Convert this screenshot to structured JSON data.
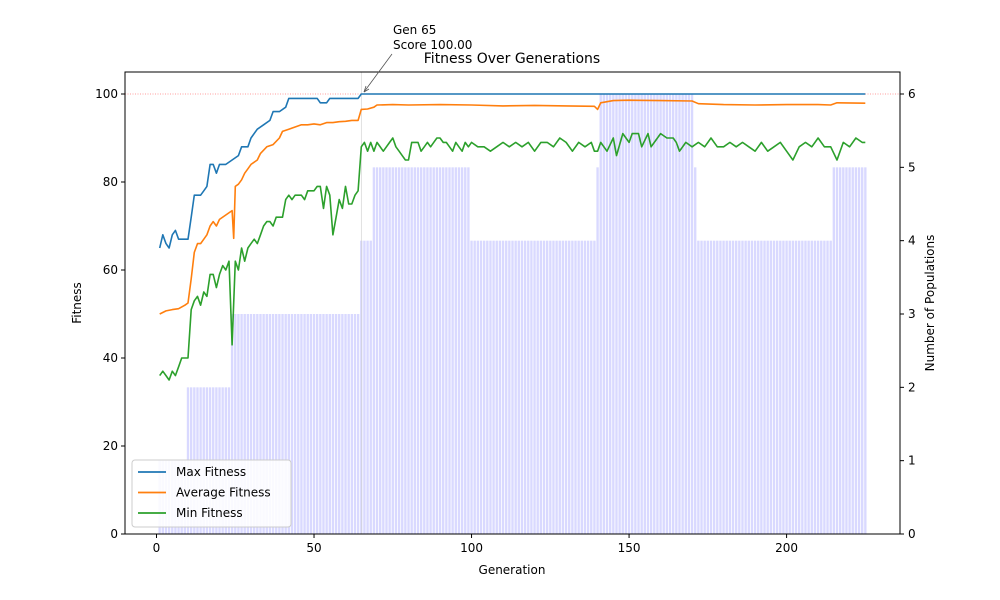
{
  "chart_data": {
    "type": "line",
    "title": "Fitness Over Generations",
    "xlabel": "Generation",
    "ylabel": "Fitness",
    "y2label": "Number of Populations",
    "xlim": [
      -10,
      236
    ],
    "ylim": [
      0,
      105
    ],
    "y2lim": [
      0,
      6.3
    ],
    "xticks": [
      0,
      50,
      100,
      150,
      200
    ],
    "yticks": [
      0,
      20,
      40,
      60,
      80,
      100
    ],
    "y2ticks": [
      0,
      1,
      2,
      3,
      4,
      5,
      6
    ],
    "reference_line": 100,
    "legend_position": "lower-left",
    "colors": {
      "max": "#1f77b4",
      "avg": "#ff7f0e",
      "min": "#2ca02c",
      "bars": "#d9d9ff",
      "reference": "#ff7f7f"
    },
    "annotation": {
      "line1": "Gen 65",
      "line2": "Score 100.00",
      "x": 65,
      "y": 100
    },
    "population_segments": [
      {
        "from": 1,
        "to": 9,
        "value": 1
      },
      {
        "from": 10,
        "to": 23,
        "value": 2
      },
      {
        "from": 24,
        "to": 64,
        "value": 3
      },
      {
        "from": 65,
        "to": 68,
        "value": 4
      },
      {
        "from": 69,
        "to": 99,
        "value": 5
      },
      {
        "from": 100,
        "to": 139,
        "value": 4
      },
      {
        "from": 140,
        "to": 140,
        "value": 5
      },
      {
        "from": 141,
        "to": 170,
        "value": 6
      },
      {
        "from": 171,
        "to": 171,
        "value": 5
      },
      {
        "from": 172,
        "to": 214,
        "value": 4
      },
      {
        "from": 215,
        "to": 225,
        "value": 5
      }
    ],
    "series": [
      {
        "name": "Max Fitness",
        "key": "max",
        "points": [
          [
            1,
            65
          ],
          [
            2,
            68
          ],
          [
            3,
            66
          ],
          [
            4,
            65
          ],
          [
            5,
            68
          ],
          [
            6,
            69
          ],
          [
            7,
            67
          ],
          [
            8,
            67
          ],
          [
            9,
            67
          ],
          [
            10,
            67
          ],
          [
            11,
            72
          ],
          [
            12,
            77
          ],
          [
            13,
            77
          ],
          [
            14,
            77
          ],
          [
            15,
            78
          ],
          [
            16,
            79
          ],
          [
            17,
            84
          ],
          [
            18,
            84
          ],
          [
            19,
            82
          ],
          [
            20,
            84
          ],
          [
            22,
            84
          ],
          [
            24,
            85
          ],
          [
            26,
            86
          ],
          [
            27,
            88
          ],
          [
            29,
            88
          ],
          [
            30,
            90
          ],
          [
            32,
            92
          ],
          [
            34,
            93
          ],
          [
            36,
            94
          ],
          [
            37,
            96
          ],
          [
            39,
            96
          ],
          [
            41,
            97
          ],
          [
            42,
            99
          ],
          [
            45,
            99
          ],
          [
            48,
            99
          ],
          [
            51,
            99
          ],
          [
            52,
            98
          ],
          [
            54,
            98
          ],
          [
            55,
            99
          ],
          [
            58,
            99
          ],
          [
            61,
            99
          ],
          [
            64,
            99
          ],
          [
            65,
            100
          ],
          [
            100,
            100
          ],
          [
            150,
            100
          ],
          [
            200,
            100
          ],
          [
            225,
            100
          ]
        ]
      },
      {
        "name": "Average Fitness",
        "key": "avg",
        "points": [
          [
            1,
            50
          ],
          [
            3,
            50.7
          ],
          [
            5,
            51
          ],
          [
            7,
            51.2
          ],
          [
            9,
            52
          ],
          [
            10,
            52.5
          ],
          [
            11,
            58
          ],
          [
            12,
            64
          ],
          [
            13,
            66
          ],
          [
            14,
            66
          ],
          [
            15,
            67
          ],
          [
            16,
            68
          ],
          [
            17,
            70
          ],
          [
            18,
            71
          ],
          [
            19,
            70
          ],
          [
            20,
            71.5
          ],
          [
            22,
            72.5
          ],
          [
            24,
            73.5
          ],
          [
            24.5,
            67.2
          ],
          [
            25,
            79
          ],
          [
            26,
            79.5
          ],
          [
            27,
            80.5
          ],
          [
            28,
            82
          ],
          [
            29,
            83
          ],
          [
            30,
            84
          ],
          [
            32,
            85
          ],
          [
            33,
            86.5
          ],
          [
            35,
            88
          ],
          [
            37,
            88.5
          ],
          [
            39,
            90
          ],
          [
            40,
            91.5
          ],
          [
            42,
            92
          ],
          [
            44,
            92.5
          ],
          [
            46,
            93
          ],
          [
            48,
            93
          ],
          [
            50,
            93.2
          ],
          [
            52,
            93
          ],
          [
            54,
            93.5
          ],
          [
            56,
            93.5
          ],
          [
            58,
            93.7
          ],
          [
            60,
            93.8
          ],
          [
            62,
            94
          ],
          [
            64,
            94
          ],
          [
            65,
            96.5
          ],
          [
            67,
            96.6
          ],
          [
            69,
            97
          ],
          [
            70,
            97.5
          ],
          [
            75,
            97.6
          ],
          [
            80,
            97.5
          ],
          [
            90,
            97.6
          ],
          [
            100,
            97.5
          ],
          [
            110,
            97.3
          ],
          [
            120,
            97.4
          ],
          [
            130,
            97.3
          ],
          [
            139,
            97.2
          ],
          [
            140,
            96.5
          ],
          [
            141,
            98
          ],
          [
            145,
            98.5
          ],
          [
            150,
            98.6
          ],
          [
            160,
            98.5
          ],
          [
            170,
            98.4
          ],
          [
            172,
            97.8
          ],
          [
            180,
            97.6
          ],
          [
            190,
            97.5
          ],
          [
            200,
            97.6
          ],
          [
            210,
            97.6
          ],
          [
            214,
            97.5
          ],
          [
            216,
            98
          ],
          [
            225,
            97.9
          ]
        ]
      },
      {
        "name": "Min Fitness",
        "key": "min",
        "points": [
          [
            1,
            36
          ],
          [
            2,
            37
          ],
          [
            3,
            36
          ],
          [
            4,
            35
          ],
          [
            5,
            37
          ],
          [
            6,
            36
          ],
          [
            7,
            38
          ],
          [
            8,
            40
          ],
          [
            9,
            40
          ],
          [
            10,
            40
          ],
          [
            11,
            51
          ],
          [
            12,
            53
          ],
          [
            13,
            54
          ],
          [
            14,
            52
          ],
          [
            15,
            55
          ],
          [
            16,
            54
          ],
          [
            17,
            59
          ],
          [
            18,
            59
          ],
          [
            19,
            56
          ],
          [
            20,
            59
          ],
          [
            21,
            61
          ],
          [
            22,
            60
          ],
          [
            23,
            62
          ],
          [
            24,
            43
          ],
          [
            25,
            62
          ],
          [
            26,
            60
          ],
          [
            27,
            65
          ],
          [
            28,
            62
          ],
          [
            29,
            65
          ],
          [
            30,
            66
          ],
          [
            31,
            67
          ],
          [
            32,
            66
          ],
          [
            33,
            68
          ],
          [
            34,
            70
          ],
          [
            35,
            71
          ],
          [
            36,
            71
          ],
          [
            37,
            70
          ],
          [
            38,
            72
          ],
          [
            40,
            72
          ],
          [
            41,
            76
          ],
          [
            42,
            77
          ],
          [
            43,
            76
          ],
          [
            44,
            77
          ],
          [
            46,
            77
          ],
          [
            47,
            76
          ],
          [
            48,
            78
          ],
          [
            49,
            78
          ],
          [
            50,
            78
          ],
          [
            51,
            79
          ],
          [
            52,
            79
          ],
          [
            53,
            74
          ],
          [
            54,
            79
          ],
          [
            55,
            77
          ],
          [
            56,
            68
          ],
          [
            57,
            72
          ],
          [
            58,
            76
          ],
          [
            59,
            74
          ],
          [
            60,
            79
          ],
          [
            61,
            75
          ],
          [
            62,
            75
          ],
          [
            63,
            77
          ],
          [
            64,
            78
          ],
          [
            65,
            88
          ],
          [
            66,
            89
          ],
          [
            67,
            87
          ],
          [
            68,
            89
          ],
          [
            69,
            87
          ],
          [
            70,
            89
          ],
          [
            72,
            87
          ],
          [
            74,
            89
          ],
          [
            75,
            90
          ],
          [
            76,
            88
          ],
          [
            77,
            87
          ],
          [
            78,
            86
          ],
          [
            79,
            85
          ],
          [
            80,
            85
          ],
          [
            81,
            89
          ],
          [
            83,
            89
          ],
          [
            84,
            87
          ],
          [
            85,
            88
          ],
          [
            86,
            89
          ],
          [
            87,
            88
          ],
          [
            88,
            89
          ],
          [
            89,
            90
          ],
          [
            90,
            90
          ],
          [
            91,
            89
          ],
          [
            92,
            89
          ],
          [
            93,
            88
          ],
          [
            94,
            87
          ],
          [
            95,
            89
          ],
          [
            96,
            88
          ],
          [
            97,
            87
          ],
          [
            98,
            89
          ],
          [
            99,
            88
          ],
          [
            100,
            89
          ],
          [
            102,
            88
          ],
          [
            104,
            88
          ],
          [
            106,
            87
          ],
          [
            108,
            88
          ],
          [
            110,
            89
          ],
          [
            112,
            88
          ],
          [
            114,
            89
          ],
          [
            116,
            88
          ],
          [
            118,
            89
          ],
          [
            120,
            87
          ],
          [
            122,
            89
          ],
          [
            124,
            89
          ],
          [
            126,
            88
          ],
          [
            128,
            90
          ],
          [
            130,
            89
          ],
          [
            132,
            87
          ],
          [
            134,
            89
          ],
          [
            136,
            88
          ],
          [
            138,
            89
          ],
          [
            139,
            87
          ],
          [
            140,
            87
          ],
          [
            141,
            89
          ],
          [
            143,
            87
          ],
          [
            145,
            90
          ],
          [
            146,
            86
          ],
          [
            148,
            91
          ],
          [
            150,
            89
          ],
          [
            151,
            91
          ],
          [
            153,
            91
          ],
          [
            154,
            88
          ],
          [
            156,
            91
          ],
          [
            157,
            88
          ],
          [
            158,
            89
          ],
          [
            160,
            91
          ],
          [
            162,
            90
          ],
          [
            164,
            90
          ],
          [
            165,
            89
          ],
          [
            166,
            87
          ],
          [
            168,
            89
          ],
          [
            170,
            88
          ],
          [
            172,
            89
          ],
          [
            174,
            88
          ],
          [
            176,
            90
          ],
          [
            178,
            88
          ],
          [
            180,
            88
          ],
          [
            182,
            89
          ],
          [
            184,
            88
          ],
          [
            186,
            89
          ],
          [
            188,
            88
          ],
          [
            190,
            87
          ],
          [
            192,
            89
          ],
          [
            194,
            87
          ],
          [
            196,
            88
          ],
          [
            198,
            89
          ],
          [
            200,
            87
          ],
          [
            202,
            85
          ],
          [
            204,
            88
          ],
          [
            206,
            89
          ],
          [
            208,
            88
          ],
          [
            210,
            90
          ],
          [
            212,
            88
          ],
          [
            214,
            88
          ],
          [
            216,
            85
          ],
          [
            218,
            89
          ],
          [
            220,
            88
          ],
          [
            222,
            90
          ],
          [
            224,
            89
          ],
          [
            225,
            89
          ]
        ]
      }
    ]
  }
}
